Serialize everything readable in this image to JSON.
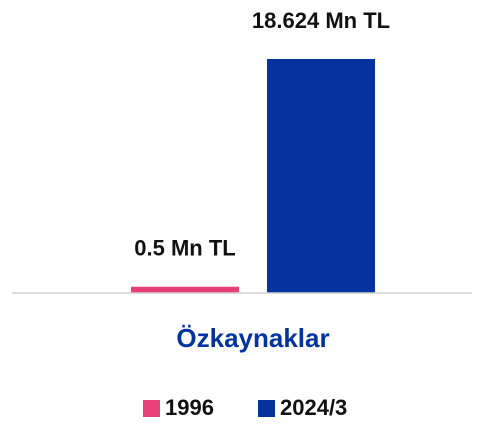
{
  "chart_data": {
    "type": "bar",
    "categories": [
      "Özkaynaklar"
    ],
    "series": [
      {
        "name": "1996",
        "color": "#e8417a",
        "values": [
          0.5
        ],
        "value_labels": [
          "0.5 Mn TL"
        ]
      },
      {
        "name": "2024/3",
        "color": "#0433a0",
        "values": [
          18.624
        ],
        "value_labels": [
          "18.624 Mn TL"
        ]
      }
    ],
    "ylim": [
      0,
      20
    ],
    "category_color": "#0433a0",
    "legend": "bottom"
  }
}
